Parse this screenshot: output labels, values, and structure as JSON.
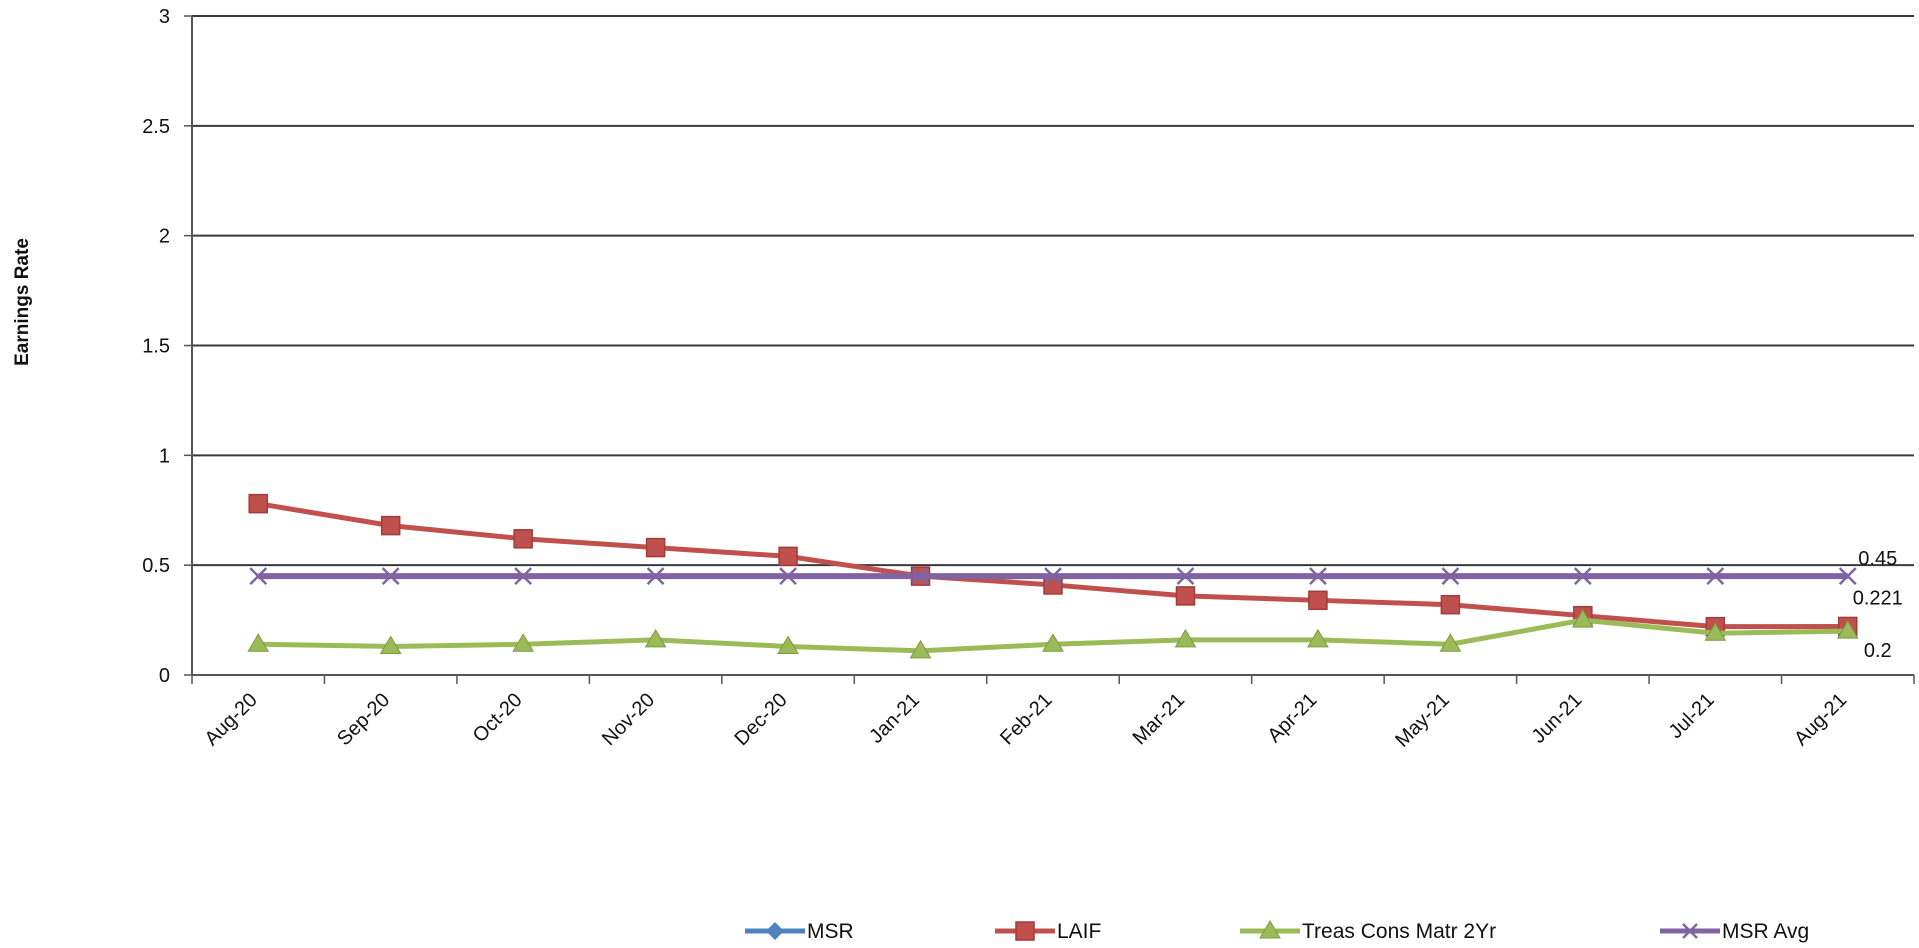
{
  "chart_data": {
    "type": "line",
    "title": "",
    "ylabel": "Earnings Rate",
    "xlabel": "",
    "ylim": [
      0,
      3
    ],
    "y_ticks": [
      0,
      0.5,
      1,
      1.5,
      2,
      2.5,
      3
    ],
    "y_tick_labels": [
      "0",
      "0.5",
      "1",
      "1.5",
      "2",
      "2.5",
      "3"
    ],
    "grid": true,
    "legend_position": "bottom",
    "categories": [
      "Aug-20",
      "Sep-20",
      "Oct-20",
      "Nov-20",
      "Dec-20",
      "Jan-21",
      "Feb-21",
      "Mar-21",
      "Apr-21",
      "May-21",
      "Jun-21",
      "Jul-21",
      "Aug-21"
    ],
    "series": [
      {
        "name": "MSR",
        "color": "#4f81bd",
        "marker": "diamond",
        "values": [
          0.45,
          0.45,
          0.45,
          0.45,
          0.45,
          0.45,
          0.45,
          0.45,
          0.45,
          0.45,
          0.45,
          0.45,
          0.45
        ]
      },
      {
        "name": "LAIF",
        "color": "#c0504d",
        "marker": "square",
        "values": [
          0.78,
          0.68,
          0.62,
          0.58,
          0.54,
          0.45,
          0.41,
          0.36,
          0.34,
          0.32,
          0.27,
          0.22,
          0.221
        ]
      },
      {
        "name": "Treas Cons Matr 2Yr",
        "color": "#9bbb59",
        "marker": "triangle",
        "values": [
          0.14,
          0.13,
          0.14,
          0.16,
          0.13,
          0.11,
          0.14,
          0.16,
          0.16,
          0.14,
          0.25,
          0.19,
          0.2
        ]
      },
      {
        "name": "MSR Avg",
        "color": "#8064a2",
        "marker": "x",
        "values": [
          0.45,
          0.45,
          0.45,
          0.45,
          0.45,
          0.45,
          0.45,
          0.45,
          0.45,
          0.45,
          0.45,
          0.45,
          0.45
        ]
      }
    ],
    "data_labels": [
      {
        "series": "MSR",
        "index": 12,
        "text": "0.45"
      },
      {
        "series": "LAIF",
        "index": 12,
        "text": "0.221"
      },
      {
        "series": "Treas Cons Matr 2Yr",
        "index": 12,
        "text": "0.2"
      }
    ]
  }
}
